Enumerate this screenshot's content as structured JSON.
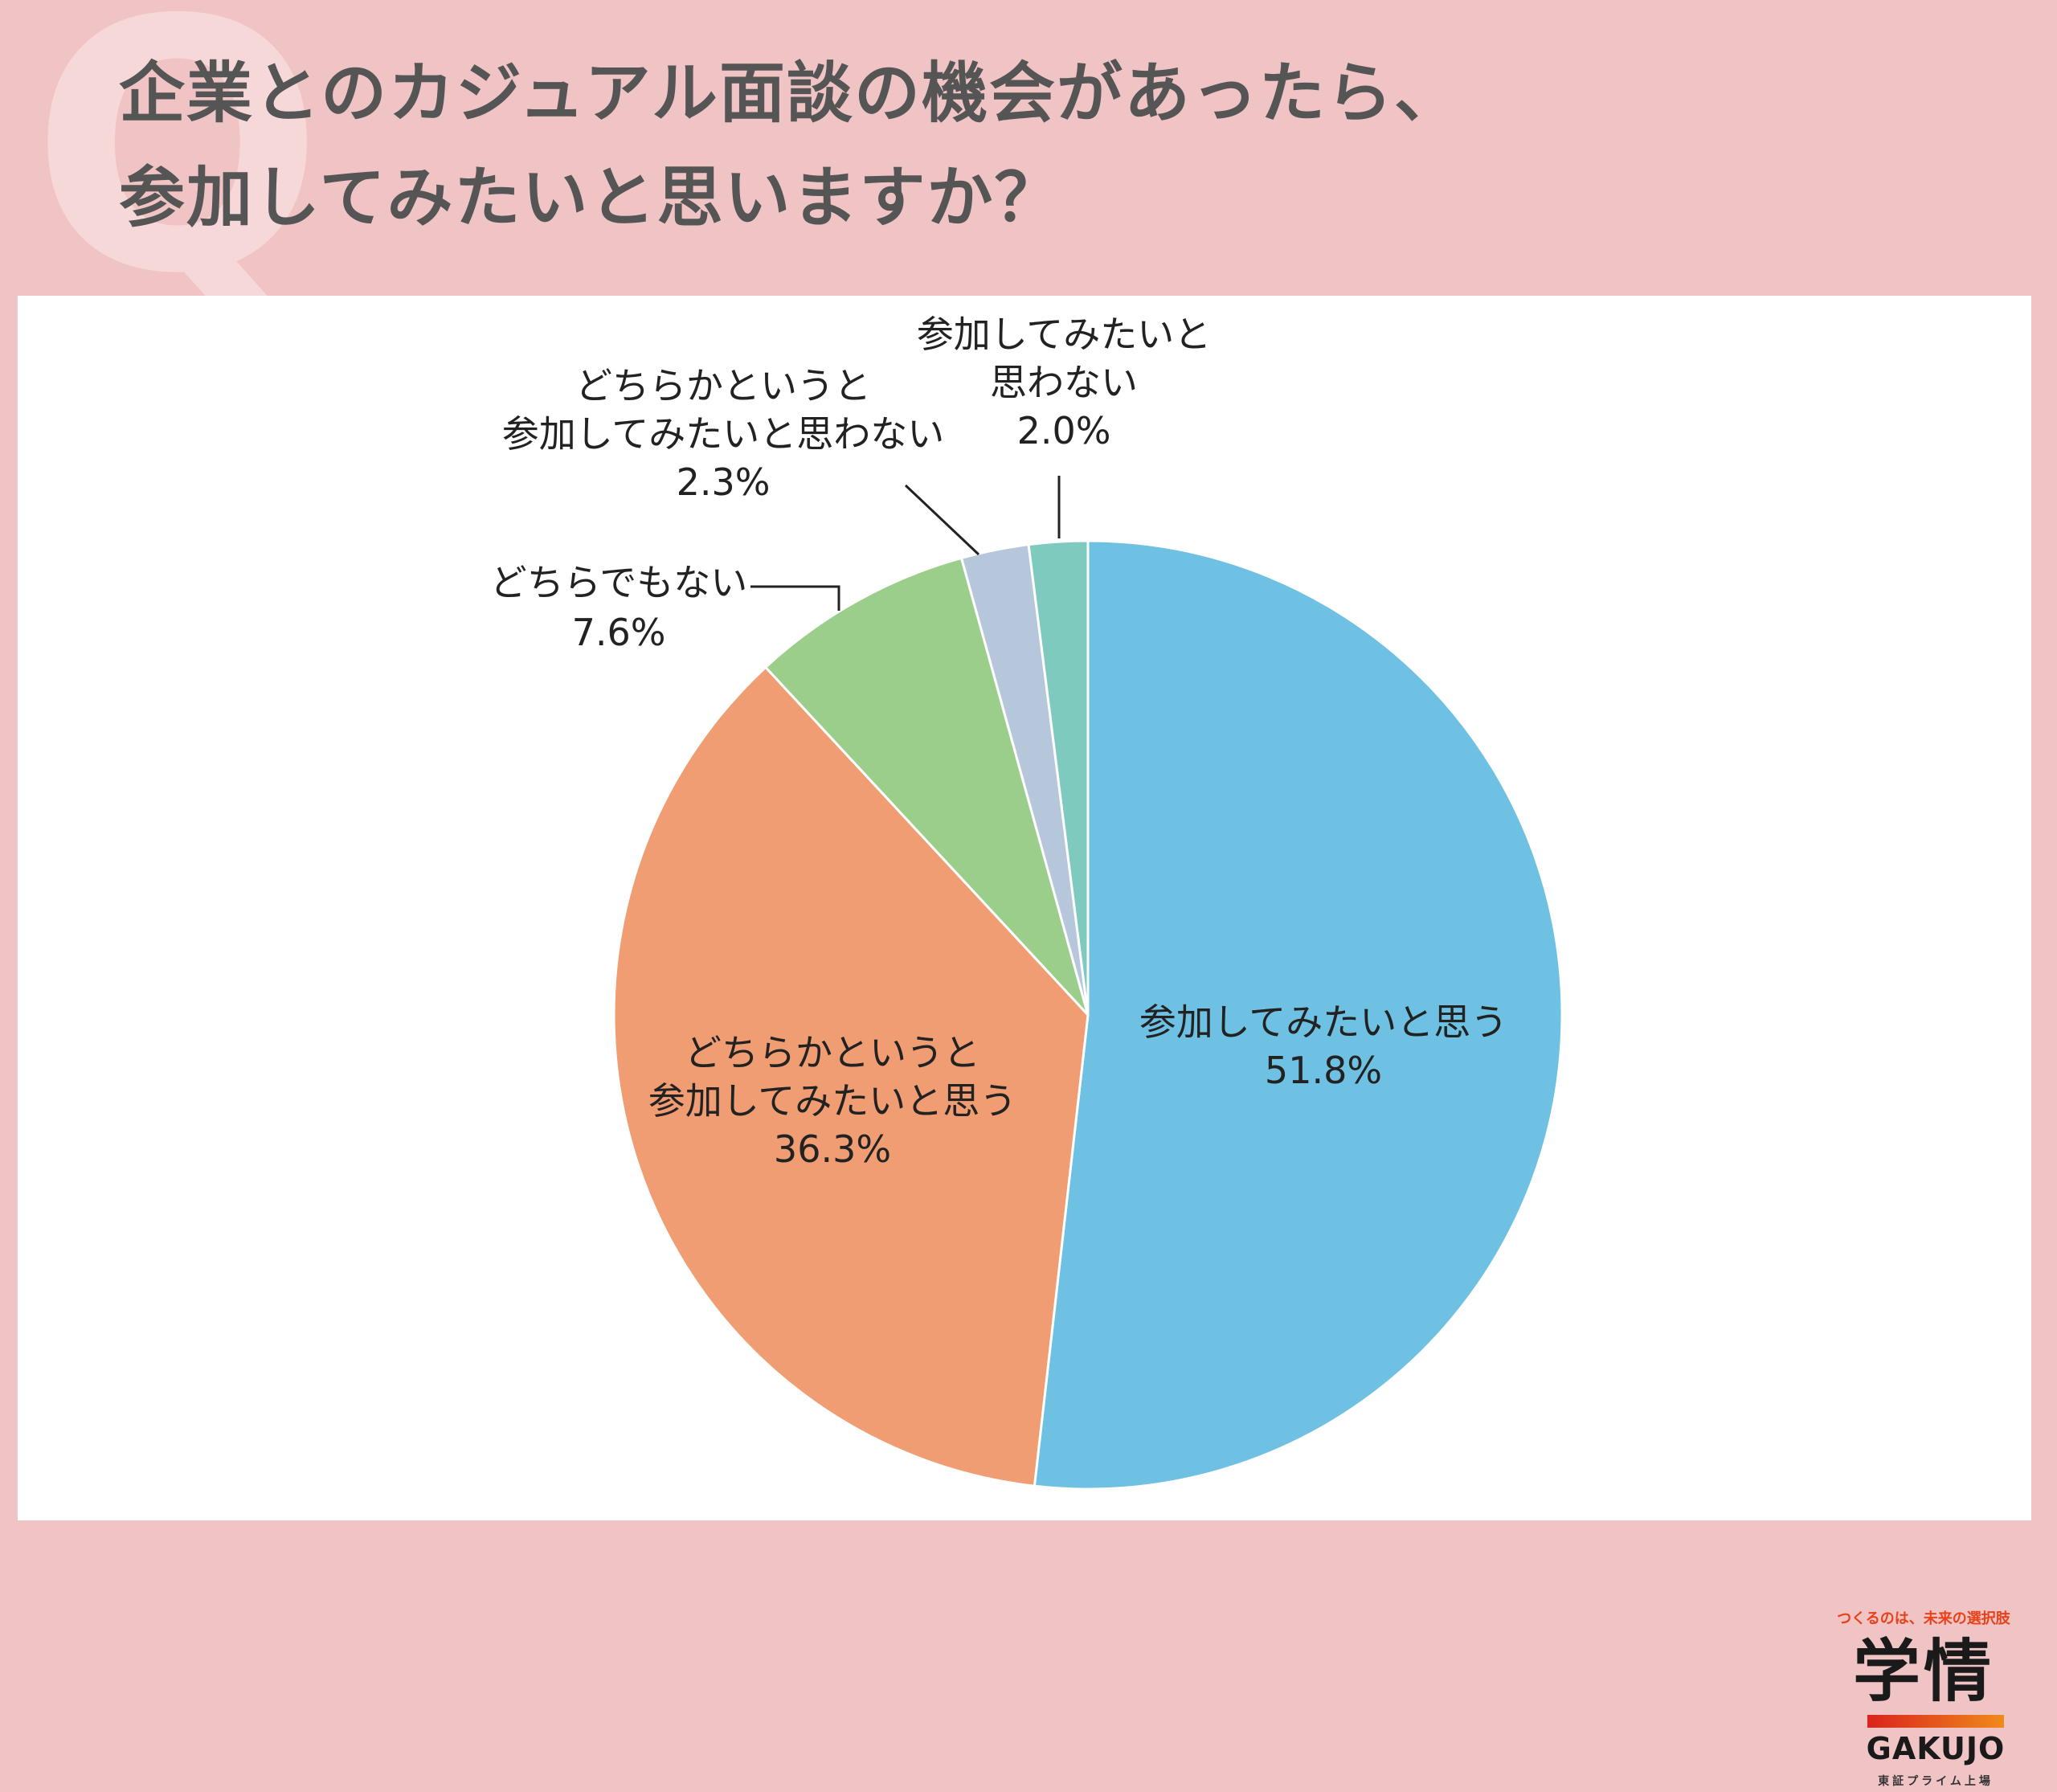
{
  "question": {
    "line1": "企業とのカジュアル面談の機会があったら、",
    "line2": "参加してみたいと思いますか？",
    "q_letter": "Q"
  },
  "chart_data": {
    "type": "pie",
    "start_angle_deg": 0,
    "direction": "clockwise",
    "slices": [
      {
        "label_lines": [
          "参加してみたいと思う"
        ],
        "value": 51.8,
        "value_text": "51.8%",
        "color": "#6ec1e2"
      },
      {
        "label_lines": [
          "どちらかというと",
          "参加してみたいと思う"
        ],
        "value": 36.3,
        "value_text": "36.3%",
        "color": "#f09d73"
      },
      {
        "label_lines": [
          "どちらでもない"
        ],
        "value": 7.6,
        "value_text": "7.6%",
        "color": "#9bce8b"
      },
      {
        "label_lines": [
          "どちらかというと",
          "参加してみたいと思わない"
        ],
        "value": 2.3,
        "value_text": "2.3%",
        "color": "#b6c7db"
      },
      {
        "label_lines": [
          "参加してみたいと",
          "思わない"
        ],
        "value": 2.0,
        "value_text": "2.0%",
        "color": "#7ecabf"
      }
    ]
  },
  "logo": {
    "tagline": "つくるのは、未来の選択肢",
    "kanji": "学情",
    "brand": "GAKUJO",
    "listing": "東証プライム上場"
  }
}
